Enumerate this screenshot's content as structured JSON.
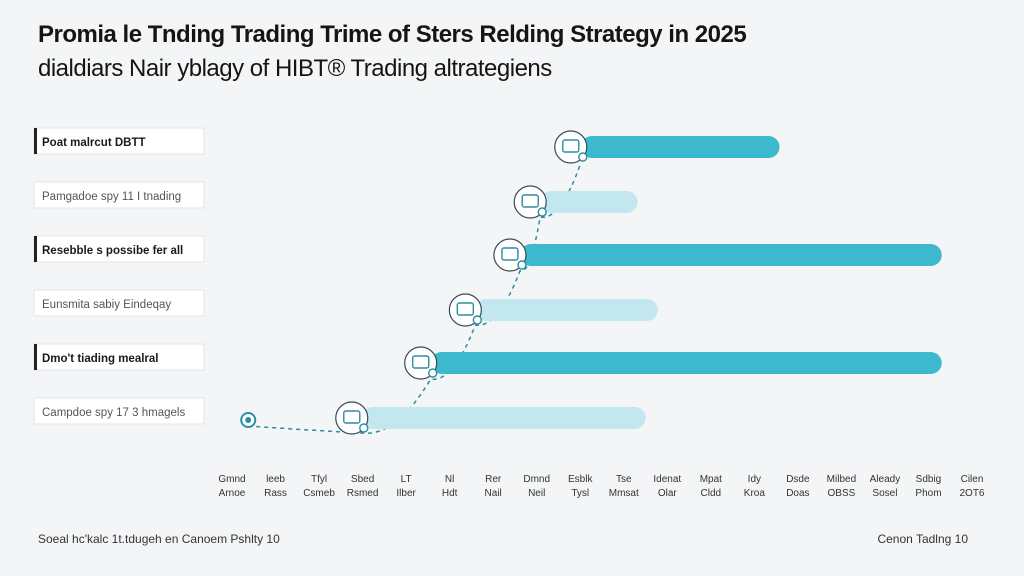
{
  "header": {
    "title": "Promia le Tnding Trading Trime of Sters Relding Strategy in 2025",
    "subtitle": "dialdiars Nair yblagy of HIBT® Trading altrategiens"
  },
  "chart_data": {
    "type": "bar",
    "orientation": "horizontal",
    "title": "Promia le Tnding Trading Trime of Sters Relding Strategy in 2025",
    "subtitle": "dialdiars Nair yblagy of HIBT® Trading altrategiens",
    "categories": [
      "Poat malrcut DBTT",
      "Pamgadoe spy 11 I tnading",
      "Resebble s possibe fer all",
      "Eunsmita sabiy Eindeqay",
      "Dmo't tiading mealral",
      "Campdoe spy 17 3 hmagels"
    ],
    "category_emphasis": [
      "bold",
      "light",
      "bold",
      "light",
      "bold",
      "light"
    ],
    "series": [
      {
        "name": "start",
        "values": [
          8.6,
          7.6,
          7.1,
          6.0,
          4.9,
          3.2
        ]
      },
      {
        "name": "end",
        "values": [
          13.5,
          10.0,
          17.5,
          10.5,
          17.5,
          10.2
        ]
      }
    ],
    "x_tick_labels": [
      [
        "Gmnd",
        "Arnoe"
      ],
      [
        "leeb",
        "Rass"
      ],
      [
        "Tfyl",
        "Csmeb"
      ],
      [
        "Sbed",
        "Rsmed"
      ],
      [
        "LT",
        "Ilber"
      ],
      [
        "Nl",
        "Hdt"
      ],
      [
        "Rer",
        "Nail"
      ],
      [
        "Dmnd",
        "Neil"
      ],
      [
        "Esblk",
        "Tysl"
      ],
      [
        "Tse",
        "Mmsat"
      ],
      [
        "Idenat",
        "Olar"
      ],
      [
        "Mpat",
        "Cldd"
      ],
      [
        "Idy",
        "Kroa"
      ],
      [
        "Dsde",
        "Doas"
      ],
      [
        "Milbed",
        "OBSS"
      ],
      [
        "Aleady",
        "Sosel"
      ],
      [
        "Sdbig",
        "Phom"
      ],
      [
        "Cilen",
        "2OT6"
      ]
    ],
    "xlim": [
      0,
      18
    ],
    "grid": false,
    "colors": {
      "emphasis": "#3cb9cc",
      "light": "#c2e7ee",
      "icon": "#2e8ca0",
      "outline": "#3a4a55"
    }
  },
  "footer": {
    "left": "Soeal hc'kalc 1t.tdugeh en Canoem Pshlty 10",
    "right": "Cenon Tadlng 10"
  }
}
